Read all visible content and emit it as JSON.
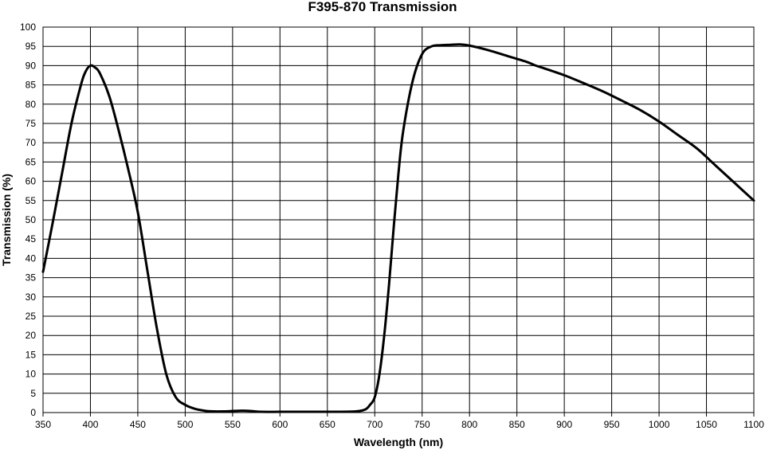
{
  "chart_data": {
    "type": "line",
    "title": "F395-870 Transmission",
    "xlabel": "Wavelength (nm)",
    "ylabel": "Transmission (%)",
    "xlim": [
      350,
      1100
    ],
    "ylim": [
      0,
      100
    ],
    "xticks": [
      350,
      400,
      450,
      500,
      550,
      600,
      650,
      700,
      750,
      800,
      850,
      900,
      950,
      1000,
      1050,
      1100
    ],
    "yticks": [
      0,
      5,
      10,
      15,
      20,
      25,
      30,
      35,
      40,
      45,
      50,
      55,
      60,
      65,
      70,
      75,
      80,
      85,
      90,
      95,
      100
    ],
    "grid": true,
    "line_color": "#000000",
    "series": [
      {
        "x": [
          350,
          360,
          370,
          380,
          390,
          395,
          400,
          405,
          410,
          420,
          430,
          440,
          450,
          460,
          470,
          480,
          490,
          500,
          510,
          520,
          530,
          540,
          550,
          560,
          570,
          580,
          600,
          620,
          640,
          660,
          680,
          690,
          695,
          700,
          705,
          710,
          715,
          720,
          725,
          730,
          740,
          750,
          760,
          770,
          780,
          790,
          800,
          820,
          840,
          860,
          870,
          880,
          900,
          920,
          940,
          960,
          980,
          1000,
          1020,
          1040,
          1060,
          1080,
          1100
        ],
        "y": [
          36.5,
          49,
          62,
          75,
          85,
          88.5,
          90,
          89.5,
          88,
          82,
          73,
          63,
          52,
          37,
          22,
          10,
          4,
          2,
          1,
          0.5,
          0.3,
          0.3,
          0.4,
          0.5,
          0.4,
          0.2,
          0.2,
          0.2,
          0.2,
          0.2,
          0.3,
          0.8,
          2,
          4,
          10,
          20,
          33,
          48,
          62,
          73,
          86,
          93,
          95,
          95.3,
          95.4,
          95.5,
          95.2,
          94,
          92.5,
          91,
          90,
          89.2,
          87.5,
          85.5,
          83.4,
          81,
          78.5,
          75.5,
          72,
          68.5,
          64,
          59.5,
          55
        ]
      }
    ]
  }
}
